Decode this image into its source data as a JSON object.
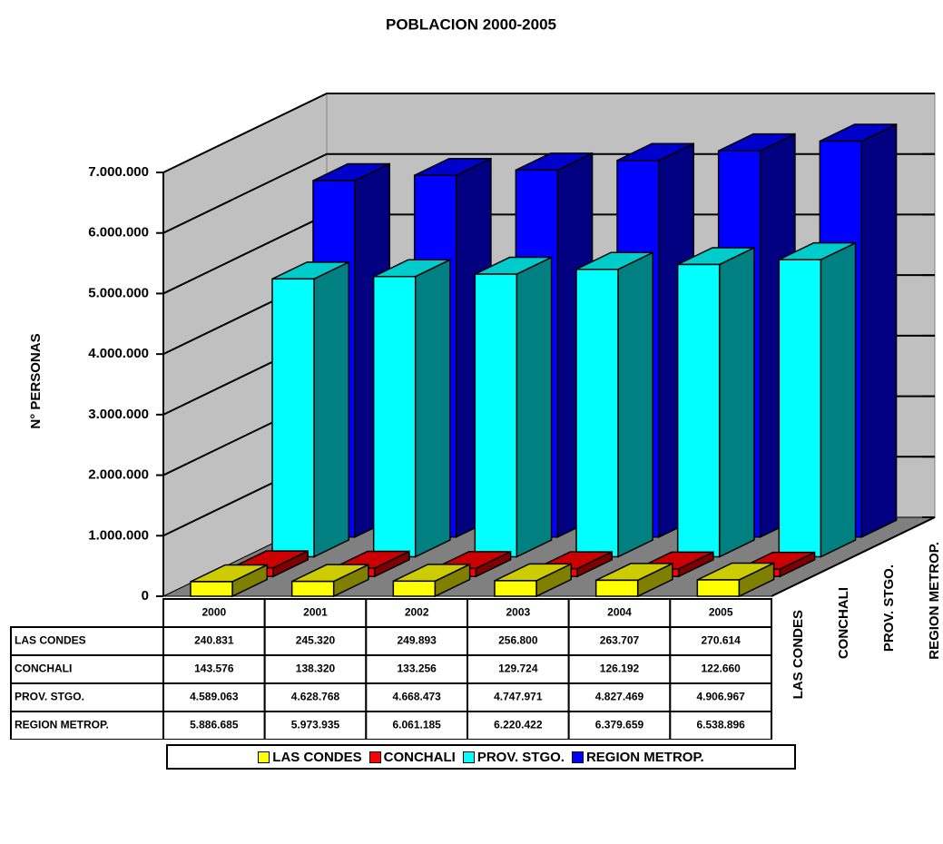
{
  "chart_data": {
    "type": "bar3d",
    "title": "POBLACION 2000-2005",
    "y_label": "N° PERSONAS",
    "categories": [
      "2000",
      "2001",
      "2002",
      "2003",
      "2004",
      "2005"
    ],
    "series": [
      {
        "name": "LAS CONDES",
        "color": "#ffff00",
        "values": [
          240831,
          245320,
          249893,
          256800,
          263707,
          270614
        ],
        "value_labels": [
          "240.831",
          "245.320",
          "249.893",
          "256.800",
          "263.707",
          "270.614"
        ]
      },
      {
        "name": "CONCHALI",
        "color": "#ff0000",
        "values": [
          143576,
          138320,
          133256,
          129724,
          126192,
          122660
        ],
        "value_labels": [
          "143.576",
          "138.320",
          "133.256",
          "129.724",
          "126.192",
          "122.660"
        ]
      },
      {
        "name": "PROV. STGO.",
        "color": "#00ffff",
        "values": [
          4589063,
          4628768,
          4668473,
          4747971,
          4827469,
          4906967
        ],
        "value_labels": [
          "4.589.063",
          "4.628.768",
          "4.668.473",
          "4.747.971",
          "4.827.469",
          "4.906.967"
        ]
      },
      {
        "name": "REGION METROP.",
        "color": "#0000ff",
        "values": [
          5886685,
          5973935,
          6061185,
          6220422,
          6379659,
          6538896
        ],
        "value_labels": [
          "5.886.685",
          "5.973.935",
          "6.061.185",
          "6.220.422",
          "6.379.659",
          "6.538.896"
        ]
      }
    ],
    "ylim": [
      0,
      7000000
    ],
    "yticks": [
      0,
      {
        "value": 1000000,
        "label": "1.000.000"
      },
      {
        "value": 2000000,
        "label": "2.000.000"
      },
      {
        "value": 3000000,
        "label": "3.000.000"
      },
      {
        "value": 4000000,
        "label": "4.000.000"
      },
      {
        "value": 5000000,
        "label": "5.000.000"
      },
      {
        "value": 6000000,
        "label": "6.000.000"
      },
      {
        "value": 7000000,
        "label": "7.000.000"
      }
    ],
    "grid": true
  }
}
